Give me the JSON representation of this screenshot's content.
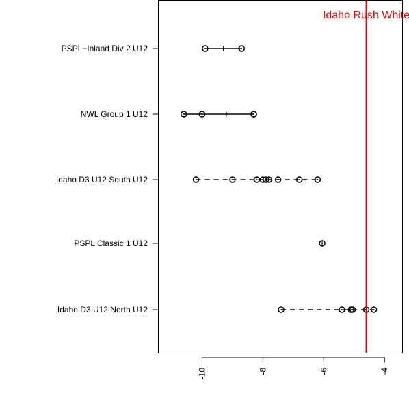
{
  "chart_data": {
    "type": "scatter",
    "orientation": "horizontal",
    "xlim": [
      -11.45,
      -3.42
    ],
    "x_ticks": [
      -10,
      -8,
      -6,
      -4
    ],
    "x_tick_labels": [
      "-10",
      "-8",
      "-6",
      "-4"
    ],
    "xlabel": "",
    "ylabel": "",
    "grid": false,
    "categories": [
      "PSPL−Inland Div 2 U12",
      "NWL Group 1 U12",
      "Idaho D3 U12 South U12",
      "PSPL Classic 1 U12",
      "Idaho D3 U12 North U12"
    ],
    "groups": [
      {
        "label": "PSPL−Inland Div 2 U12",
        "points": [
          -9.9,
          -8.7
        ],
        "mean": -9.3,
        "line": "solid"
      },
      {
        "label": "NWL Group 1 U12",
        "points": [
          -10.6,
          -10.0,
          -8.3,
          -8.3
        ],
        "mean": -9.2,
        "line": "solid"
      },
      {
        "label": "Idaho D3 U12 South U12",
        "points": [
          -10.2,
          -9.0,
          -8.2,
          -8.0,
          -7.9,
          -7.8,
          -7.5,
          -6.8,
          -6.2
        ],
        "mean": -8.0,
        "line": "dashed"
      },
      {
        "label": "PSPL Classic 1 U12",
        "points": [
          -6.05
        ],
        "mean": -6.05,
        "line": "solid"
      },
      {
        "label": "Idaho D3 U12 North U12",
        "points": [
          -7.4,
          -5.4,
          -5.1,
          -5.05,
          -4.6,
          -4.35
        ],
        "mean": -5.3,
        "line": "dashed"
      }
    ],
    "reference_line": {
      "value": -4.6,
      "label": "Idaho Rush White",
      "color": "#ee0000"
    }
  }
}
